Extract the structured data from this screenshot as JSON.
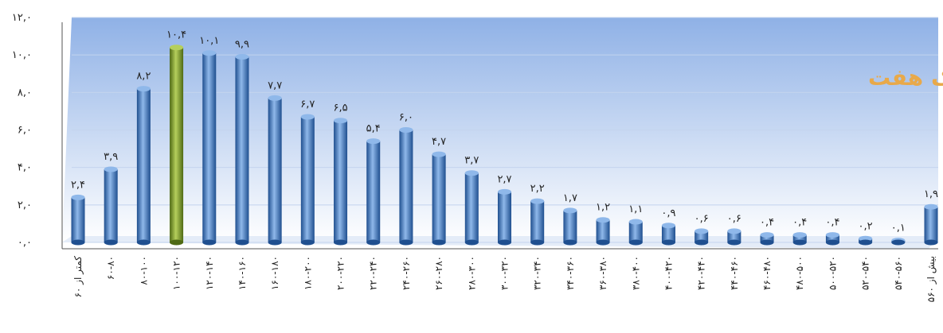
{
  "chart_data": {
    "type": "bar",
    "watermark": "پایگاه خبری ملک هفت",
    "ylim": [
      0,
      12
    ],
    "yticks": [
      "۰,۰",
      "۲,۰",
      "۴,۰",
      "۶,۰",
      "۸,۰",
      "۱۰,۰",
      "۱۲,۰"
    ],
    "grid": true,
    "categories": [
      "کمتر از ۶۰",
      "۶۰-۸۰",
      "۸۰-۱۰۰",
      "۱۰۰-۱۲۰",
      "۱۲۰-۱۴۰",
      "۱۴۰-۱۶۰",
      "۱۶۰-۱۸۰",
      "۱۸۰-۲۰۰",
      "۲۰۰-۲۲۰",
      "۲۲۰-۲۴۰",
      "۲۴۰-۲۶۰",
      "۲۶۰-۲۸۰",
      "۲۸۰-۳۰۰",
      "۳۰۰-۳۲۰",
      "۳۲۰-۳۴۰",
      "۳۴۰-۳۶۰",
      "۳۶۰-۳۸۰",
      "۳۸۰-۴۰۰",
      "۴۰۰-۴۲۰",
      "۴۲۰-۴۴۰",
      "۴۴۰-۴۶۰",
      "۴۶۰-۴۸۰",
      "۴۸۰-۵۰۰",
      "۵۰۰-۵۲۰",
      "۵۲۰-۵۴۰",
      "۵۴۰-۵۶۰",
      "بیش از ۵۶۰"
    ],
    "values": [
      2.4,
      3.9,
      8.2,
      10.4,
      10.1,
      9.9,
      7.7,
      6.7,
      6.5,
      5.4,
      6.0,
      4.7,
      3.7,
      2.7,
      2.2,
      1.7,
      1.2,
      1.1,
      0.9,
      0.6,
      0.6,
      0.4,
      0.4,
      0.4,
      0.2,
      0.1,
      1.9
    ],
    "value_labels": [
      "۲,۴",
      "۳,۹",
      "۸,۲",
      "۱۰,۴",
      "۱۰,۱",
      "۹,۹",
      "۷,۷",
      "۶,۷",
      "۶,۵",
      "۵,۴",
      "۶,۰",
      "۴,۷",
      "۳,۷",
      "۲,۷",
      "۲,۲",
      "۱,۷",
      "۱,۲",
      "۱,۱",
      "۰,۹",
      "۰,۶",
      "۰,۶",
      "۰,۴",
      "۰,۴",
      "۰,۴",
      "۰,۲",
      "۰,۱",
      "۱,۹"
    ],
    "highlight_index": 3,
    "colors": {
      "bar": "#3a78c4",
      "bar_dark": "#1f4f8f",
      "bar_light": "#8fb8ea",
      "highlight": "#7a9a2a",
      "highlight_dark": "#4f6a14",
      "highlight_light": "#b5cf5c",
      "bg_top": "#8fb1e6",
      "bg_bottom": "#ffffff",
      "grid": "#c3d4ee",
      "watermark": "#e8a94a"
    }
  }
}
